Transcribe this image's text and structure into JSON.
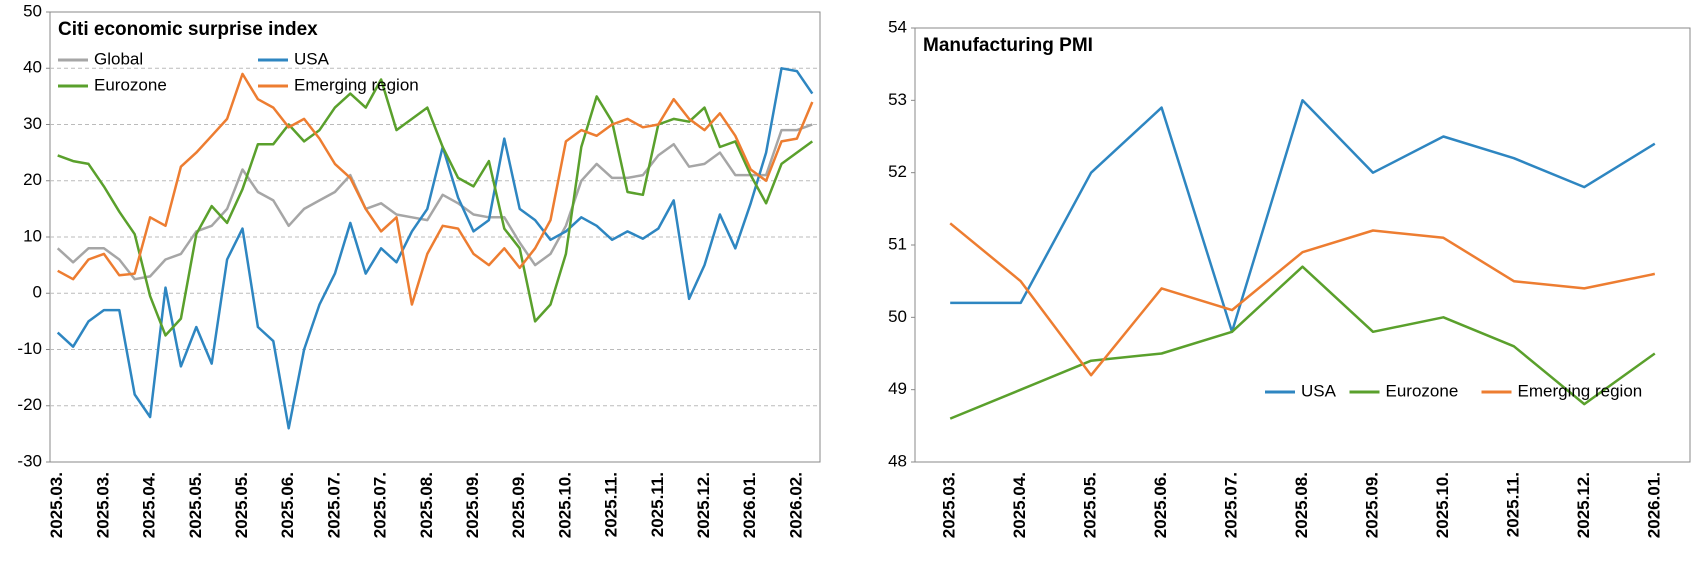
{
  "chart_data": [
    {
      "type": "line",
      "title": "Citi economic surprise index",
      "categories": [
        "2025.03.",
        null,
        null,
        "2025.03.",
        null,
        null,
        "2025.04.",
        null,
        null,
        "2025.05.",
        null,
        null,
        "2025.05.",
        null,
        null,
        "2025.06.",
        null,
        null,
        "2025.07.",
        null,
        null,
        "2025.07.",
        null,
        null,
        "2025.08.",
        null,
        null,
        "2025.09.",
        null,
        null,
        "2025.09.",
        null,
        null,
        "2025.10.",
        null,
        null,
        "2025.11.",
        null,
        null,
        "2025.11.",
        null,
        null,
        "2025.12.",
        null,
        null,
        "2026.01.",
        null,
        null,
        "2026.02.",
        null
      ],
      "series": [
        {
          "name": "Global",
          "color": "#a6a6a6",
          "values": [
            8,
            5.5,
            8,
            8,
            6,
            2.5,
            3,
            6,
            7,
            11,
            12,
            15,
            22,
            18,
            16.5,
            12,
            15,
            16.5,
            18,
            21,
            15,
            16,
            14,
            13.5,
            13,
            17.5,
            16,
            14,
            13.5,
            13.5,
            9,
            5,
            7,
            12,
            20,
            23,
            20.5,
            20.5,
            21,
            24.5,
            26.5,
            22.5,
            23,
            25,
            21,
            21,
            21,
            29,
            29,
            30
          ]
        },
        {
          "name": "USA",
          "color": "#2e86c1",
          "values": [
            -7,
            -9.5,
            -5,
            -3,
            -3,
            -18,
            -22,
            1,
            -13,
            -6,
            -12.5,
            6,
            11.5,
            -6,
            -8.5,
            -24,
            -10,
            -2,
            3.5,
            12.5,
            3.5,
            8,
            5.5,
            11,
            15,
            26,
            17,
            11,
            13,
            27.5,
            15,
            13,
            9.5,
            11,
            13.5,
            12,
            9.5,
            11,
            9.7,
            11.5,
            16.5,
            -1,
            5,
            14,
            8,
            16,
            25,
            40,
            39.5,
            35.5
          ]
        },
        {
          "name": "Eurozone",
          "color": "#5aa02c",
          "values": [
            24.5,
            23.5,
            23,
            19,
            14.5,
            10.5,
            -0.5,
            -7.5,
            -4.5,
            10.5,
            15.5,
            12.5,
            18.5,
            26.5,
            26.5,
            30,
            27,
            29,
            33,
            35.5,
            33,
            38,
            29,
            31,
            33,
            26,
            20.5,
            19,
            23.5,
            11.5,
            8,
            -5,
            -2,
            7,
            26,
            35,
            30.5,
            18,
            17.5,
            30,
            31,
            30.5,
            33,
            26,
            27,
            21,
            16,
            23,
            25,
            27
          ]
        },
        {
          "name": "Emerging region",
          "color": "#ed7d31",
          "values": [
            4,
            2.5,
            6,
            7,
            3.2,
            3.5,
            13.5,
            12,
            22.5,
            25,
            28,
            31,
            39,
            34.5,
            33,
            29.5,
            31,
            27.5,
            23,
            20.5,
            15,
            11,
            13.5,
            -2,
            7,
            12,
            11.5,
            7,
            5,
            8,
            4.5,
            8,
            13,
            27,
            29,
            28,
            30,
            31,
            29.5,
            30,
            34.5,
            31,
            29,
            32,
            28,
            22,
            20,
            27,
            27.5,
            34
          ]
        }
      ],
      "ylim": [
        -30,
        50
      ],
      "yticks": [
        -30,
        -20,
        -10,
        0,
        10,
        20,
        30,
        40,
        50
      ],
      "grid": true,
      "legend": "upper left",
      "legend_columns": 2
    },
    {
      "type": "line",
      "title": "Manufacturing  PMI",
      "categories": [
        "2025.03.",
        "2025.04.",
        "2025.05.",
        "2025.06.",
        "2025.07.",
        "2025.08.",
        "2025.09.",
        "2025.10.",
        "2025.11.",
        "2025.12.",
        "2026.01."
      ],
      "series": [
        {
          "name": "USA",
          "color": "#2e86c1",
          "values": [
            50.2,
            50.2,
            52,
            52.9,
            49.8,
            53,
            52,
            52.5,
            52.2,
            51.8,
            52.4
          ]
        },
        {
          "name": "Eurozone",
          "color": "#5aa02c",
          "values": [
            48.6,
            49,
            49.4,
            49.5,
            49.8,
            50.7,
            49.8,
            50,
            49.6,
            48.8,
            49.5
          ]
        },
        {
          "name": "Emerging region",
          "color": "#ed7d31",
          "values": [
            51.3,
            50.5,
            49.2,
            50.4,
            50.1,
            50.9,
            51.2,
            51.1,
            50.5,
            50.4,
            50.6
          ]
        }
      ],
      "ylim": [
        48,
        54
      ],
      "yticks": [
        48,
        49,
        50,
        51,
        52,
        53,
        54
      ],
      "grid": false,
      "legend": "lower right",
      "legend_columns": 3
    }
  ]
}
